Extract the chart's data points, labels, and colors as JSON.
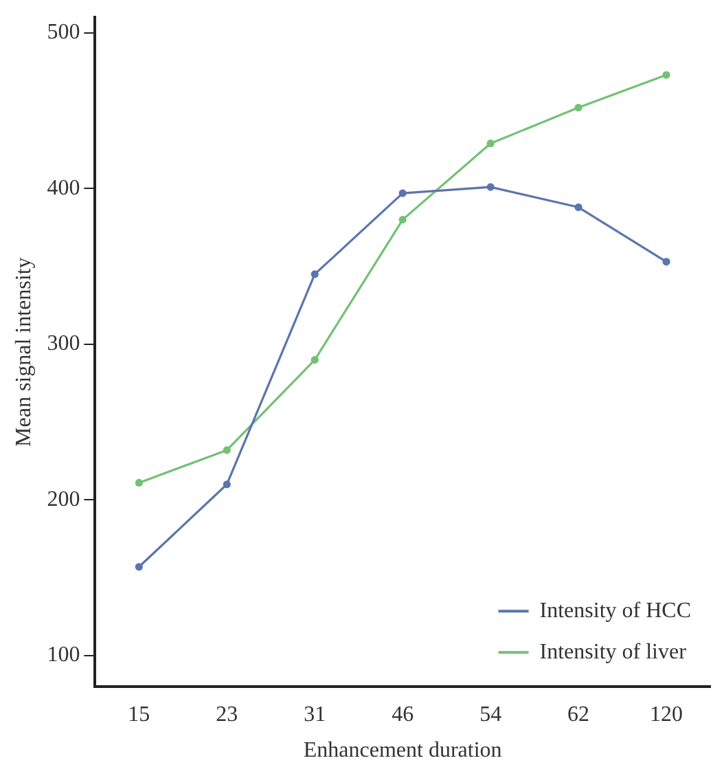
{
  "chart_data": {
    "type": "line",
    "xlabel": "Enhancement duration",
    "ylabel": "Mean signal intensity",
    "categories": [
      "15",
      "23",
      "31",
      "46",
      "54",
      "62",
      "120"
    ],
    "series": [
      {
        "name": "Intensity of HCC",
        "color": "#5b75ad",
        "values": [
          157,
          210,
          345,
          397,
          401,
          388,
          353
        ]
      },
      {
        "name": "Intensity of liver",
        "color": "#72c174",
        "values": [
          211,
          232,
          290,
          380,
          429,
          452,
          473
        ]
      }
    ],
    "ylim": [
      80,
      510
    ],
    "yticks": [
      100,
      200,
      300,
      400,
      500
    ],
    "grid": false,
    "legend": "bottom right",
    "marker": "circle",
    "line_style": "solid"
  }
}
